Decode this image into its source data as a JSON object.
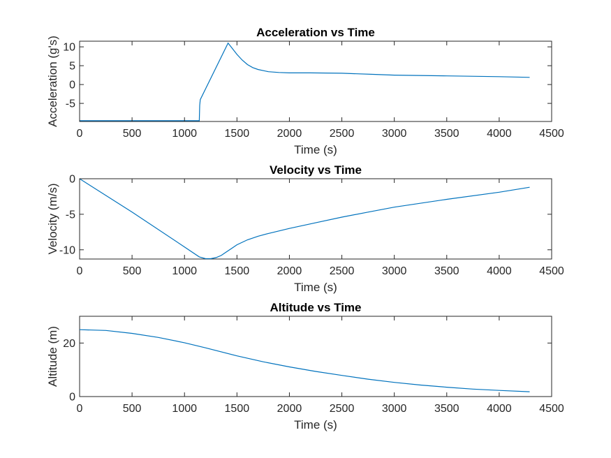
{
  "chart_data": [
    {
      "type": "line",
      "title": "Acceleration vs Time",
      "xlabel": "Time (s)",
      "ylabel": "Acceleration (g's)",
      "xlim": [
        0,
        4500
      ],
      "ylim": [
        -9.8,
        11.5
      ],
      "xticks": [
        0,
        500,
        1000,
        1500,
        2000,
        2500,
        3000,
        3500,
        4000,
        4500
      ],
      "yticks": [
        -5,
        0,
        5,
        10
      ],
      "grid": false,
      "series": [
        {
          "name": "Acceleration",
          "x": [
            0,
            1140,
            1141,
            1145,
            1150,
            1415,
            1450,
            1500,
            1550,
            1600,
            1650,
            1700,
            1800,
            1900,
            2000,
            2200,
            2500,
            2800,
            3000,
            3500,
            4000,
            4290
          ],
          "y": [
            -9.6,
            -9.6,
            -9.6,
            -5.5,
            -4,
            11,
            9.8,
            8.0,
            6.5,
            5.3,
            4.5,
            4.0,
            3.4,
            3.2,
            3.1,
            3.1,
            3.0,
            2.7,
            2.5,
            2.3,
            2.1,
            1.9
          ]
        }
      ]
    },
    {
      "type": "line",
      "title": "Velocity vs Time",
      "xlabel": "Time (s)",
      "ylabel": "Velocity (m/s)",
      "xlim": [
        0,
        4500
      ],
      "ylim": [
        -11.3,
        0
      ],
      "xticks": [
        0,
        500,
        1000,
        1500,
        2000,
        2500,
        3000,
        3500,
        4000,
        4500
      ],
      "yticks": [
        -10,
        -5,
        0
      ],
      "grid": false,
      "series": [
        {
          "name": "Velocity",
          "x": [
            0,
            500,
            1000,
            1140,
            1200,
            1250,
            1300,
            1350,
            1400,
            1450,
            1500,
            1600,
            1700,
            1800,
            2000,
            2250,
            2500,
            2750,
            3000,
            3500,
            4000,
            4290
          ],
          "y": [
            0,
            -4.7,
            -9.6,
            -11.0,
            -11.25,
            -11.25,
            -11.1,
            -10.8,
            -10.3,
            -9.8,
            -9.3,
            -8.6,
            -8.1,
            -7.7,
            -7.0,
            -6.2,
            -5.4,
            -4.7,
            -4.0,
            -2.9,
            -1.9,
            -1.2
          ]
        }
      ]
    },
    {
      "type": "line",
      "title": "Altitude vs Time",
      "xlabel": "Time (s)",
      "ylabel": "Altitude (m)",
      "xlim": [
        0,
        4500
      ],
      "ylim": [
        0,
        30
      ],
      "xticks": [
        0,
        500,
        1000,
        1500,
        2000,
        2500,
        3000,
        3500,
        4000,
        4500
      ],
      "yticks": [
        0,
        20
      ],
      "grid": false,
      "series": [
        {
          "name": "Altitude",
          "x": [
            0,
            250,
            500,
            750,
            1000,
            1200,
            1500,
            1750,
            2000,
            2250,
            2500,
            2750,
            3000,
            3250,
            3500,
            3750,
            4000,
            4290
          ],
          "y": [
            25.0,
            24.7,
            23.6,
            22.1,
            20.1,
            18.2,
            15.2,
            13.0,
            11.1,
            9.4,
            7.9,
            6.5,
            5.3,
            4.3,
            3.5,
            2.8,
            2.3,
            1.8
          ]
        }
      ]
    }
  ],
  "colors": {
    "line": "#0072BD",
    "axis": "#262626",
    "background": "#ffffff"
  }
}
